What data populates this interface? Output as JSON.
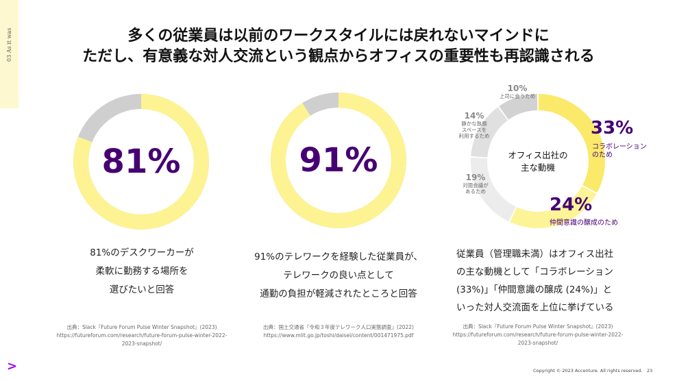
{
  "side_tab": "03 As it was",
  "title_line1": "多くの従業員は以前のワークスタイルには戻れないマインドに",
  "title_line2": "ただし、有意義な対人交流という観点からオフィスの重要性も再認識される",
  "stat1": {
    "value": "81%",
    "fraction": 0.81,
    "caption": [
      "81%のデスクワーカーが",
      "柔軟に勤務する場所を",
      "選びたいと回答"
    ],
    "source": [
      "出典：Slack『Future Forum Pulse Winter Snapshot』(2023)",
      "https://futureforum.com/research/future-forum-pulse-winter-2022-",
      "2023-snapshot/"
    ]
  },
  "stat2": {
    "value": "91%",
    "fraction": 0.91,
    "caption": [
      "91%のテレワークを経験した従業員が、",
      "テレワークの良い点として",
      "通勤の負担が軽減されたところと回答"
    ],
    "source": [
      "出典：国土交通省『令和３年度テレワーク人口実態調査』(2022)",
      "https://www.mlit.go.jp/toshi/daisei/content/001471975.pdf"
    ]
  },
  "chart_data": {
    "type": "pie",
    "center_label": [
      "オフィス出社の",
      "主な動機"
    ],
    "slices": [
      {
        "value": 33,
        "label": "33%",
        "text": [
          "コラボレーション",
          "のため"
        ],
        "color": "#fbe96a"
      },
      {
        "value": 24,
        "label": "24%",
        "text": [
          "仲間意識の醸成のため"
        ],
        "color": "#fdf497"
      },
      {
        "value": 19,
        "label": "19%",
        "text": [
          "対面会議が",
          "あるため"
        ],
        "color": "#ececec"
      },
      {
        "value": 14,
        "label": "14%",
        "text": [
          "静かな執務",
          "スペースを",
          "利用するため"
        ],
        "color": "#e0e0e0"
      },
      {
        "value": 10,
        "label": "10%",
        "text": [
          "上司に会うため"
        ],
        "color": "#d2d2d2"
      }
    ],
    "caption": [
      "従業員（管理職未満）はオフィス出社",
      "の主な動機として「コラボレーション",
      "(33%)」「仲間意識の醸成 (24%)」と",
      "いった対人交流面を上位に挙げている"
    ],
    "source": [
      "出典：Slack『Future Forum Pulse Winter Snapshot』(2023)",
      "https://futureforum.com/research/future-forum-pulse-winter-2022-",
      "2023-snapshot/"
    ]
  },
  "colors": {
    "accent": "#460073",
    "ring_yellow": "#fdf392",
    "ring_gray": "#cfcfcf",
    "logo": "#a100ff"
  },
  "logo": ">",
  "copyright": "Copyright © 2023 Accenture. All rights reserved.",
  "page_number": "23"
}
